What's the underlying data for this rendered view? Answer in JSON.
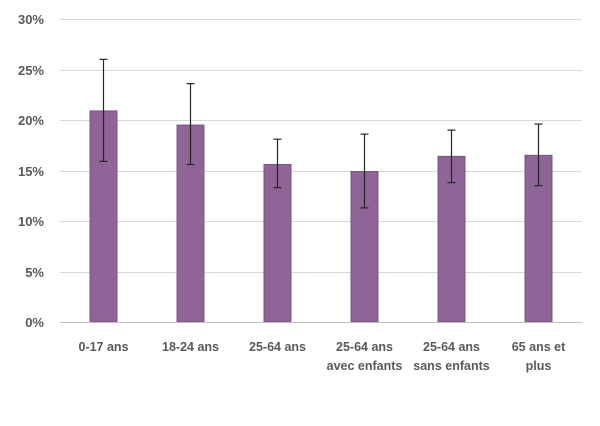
{
  "chart_data": {
    "type": "bar",
    "title": "",
    "xlabel": "",
    "ylabel": "",
    "ylim": [
      0,
      30
    ],
    "ytick_step": 5,
    "ytick_suffix": "%",
    "grid": true,
    "categories": [
      [
        "0-17 ans"
      ],
      [
        "18-24 ans"
      ],
      [
        "25-64 ans"
      ],
      [
        "25-64 ans",
        "avec enfants"
      ],
      [
        "25-64 ans",
        "sans enfants"
      ],
      [
        "65 ans et",
        "plus"
      ]
    ],
    "values": [
      20.9,
      19.5,
      15.6,
      14.9,
      16.4,
      16.5
    ],
    "error_low": [
      15.9,
      15.6,
      13.3,
      11.3,
      13.8,
      13.5
    ],
    "error_high": [
      26.0,
      23.6,
      18.1,
      18.6,
      19.0,
      19.6
    ],
    "bar_color": "#8e6596",
    "bar_stroke": "#7a5482",
    "error_color": "#262626"
  }
}
